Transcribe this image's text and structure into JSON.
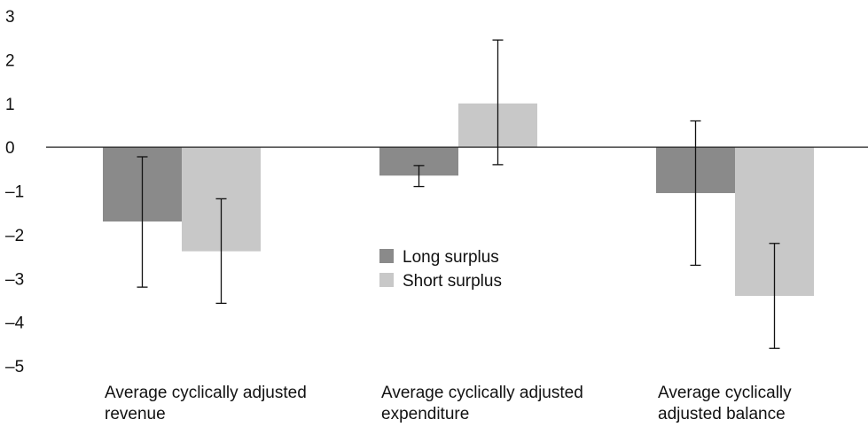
{
  "chart_data": {
    "type": "bar",
    "title": "",
    "xlabel": "",
    "ylabel": "",
    "ylim": [
      -5,
      3
    ],
    "yticks": [
      3,
      2,
      1,
      0,
      -1,
      -2,
      -3,
      -4,
      -5
    ],
    "ytick_labels": [
      "3",
      "2",
      "1",
      "0",
      "–1",
      "–2",
      "–3",
      "–4",
      "–5"
    ],
    "categories": [
      [
        "Average cyclically adjusted",
        "revenue"
      ],
      [
        "Average cyclically adjusted",
        "expenditure"
      ],
      [
        "Average cyclically",
        "adjusted balance"
      ]
    ],
    "series": [
      {
        "name": "Long surplus",
        "color": "#8a8a8a",
        "values": [
          -1.7,
          -0.65,
          -1.05
        ],
        "error_low": [
          -3.2,
          -0.9,
          -2.7
        ],
        "error_high": [
          -0.22,
          -0.42,
          0.6
        ]
      },
      {
        "name": "Short surplus",
        "color": "#c8c8c8",
        "values": [
          -2.38,
          1.0,
          -3.4
        ],
        "error_low": [
          -3.57,
          -0.4,
          -4.6
        ],
        "error_high": [
          -1.18,
          2.45,
          -2.2
        ]
      }
    ],
    "legend": {
      "position": "center",
      "entries": [
        "Long surplus",
        "Short surplus"
      ]
    },
    "grid": false,
    "zero_line": true
  }
}
